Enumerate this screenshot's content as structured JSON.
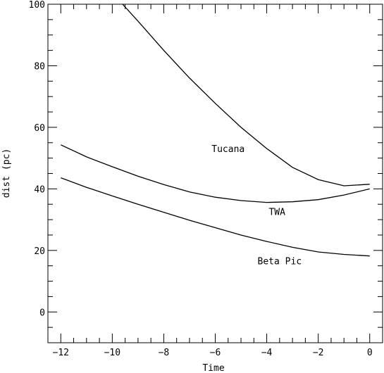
{
  "chart_data": {
    "type": "line",
    "title": "",
    "xlabel": "Time",
    "ylabel": "dist (pc)",
    "xlim": [
      -12.5,
      0.5
    ],
    "ylim": [
      -10,
      100
    ],
    "x_major_ticks": [
      -12,
      -10,
      -8,
      -6,
      -4,
      -2,
      0
    ],
    "x_tick_labels": [
      "−12",
      "−10",
      "−8",
      "−6",
      "−4",
      "−2",
      "0"
    ],
    "y_major_ticks": [
      0,
      20,
      40,
      60,
      80,
      100
    ],
    "y_tick_labels": [
      "0",
      "20",
      "40",
      "60",
      "80",
      "100"
    ],
    "grid": false,
    "series": [
      {
        "name": "Tucana",
        "x": [
          -9.6,
          -9,
          -8,
          -7,
          -6,
          -5,
          -4,
          -3,
          -2,
          -1,
          0
        ],
        "y": [
          100,
          94.5,
          85,
          76,
          67.8,
          60,
          53.1,
          47,
          43,
          41,
          41.5
        ],
        "label_at": [
          -5.5,
          52
        ]
      },
      {
        "name": "TWA",
        "x": [
          -12,
          -11,
          -10,
          -9,
          -8,
          -7,
          -6,
          -5,
          -4,
          -3,
          -2,
          -1,
          0
        ],
        "y": [
          54.3,
          50.4,
          47.2,
          44.1,
          41.4,
          39,
          37.3,
          36.2,
          35.6,
          35.8,
          36.5,
          38,
          40
        ],
        "label_at": [
          -3.6,
          31.5
        ]
      },
      {
        "name": "Beta Pic",
        "x": [
          -12,
          -11,
          -10,
          -9,
          -8,
          -7,
          -6,
          -5,
          -4,
          -3,
          -2,
          -1,
          0
        ],
        "y": [
          43.6,
          40.5,
          37.7,
          35,
          32.4,
          29.8,
          27.4,
          25,
          22.9,
          21,
          19.5,
          18.7,
          18.2
        ],
        "label_at": [
          -3.5,
          15.5
        ]
      }
    ]
  }
}
